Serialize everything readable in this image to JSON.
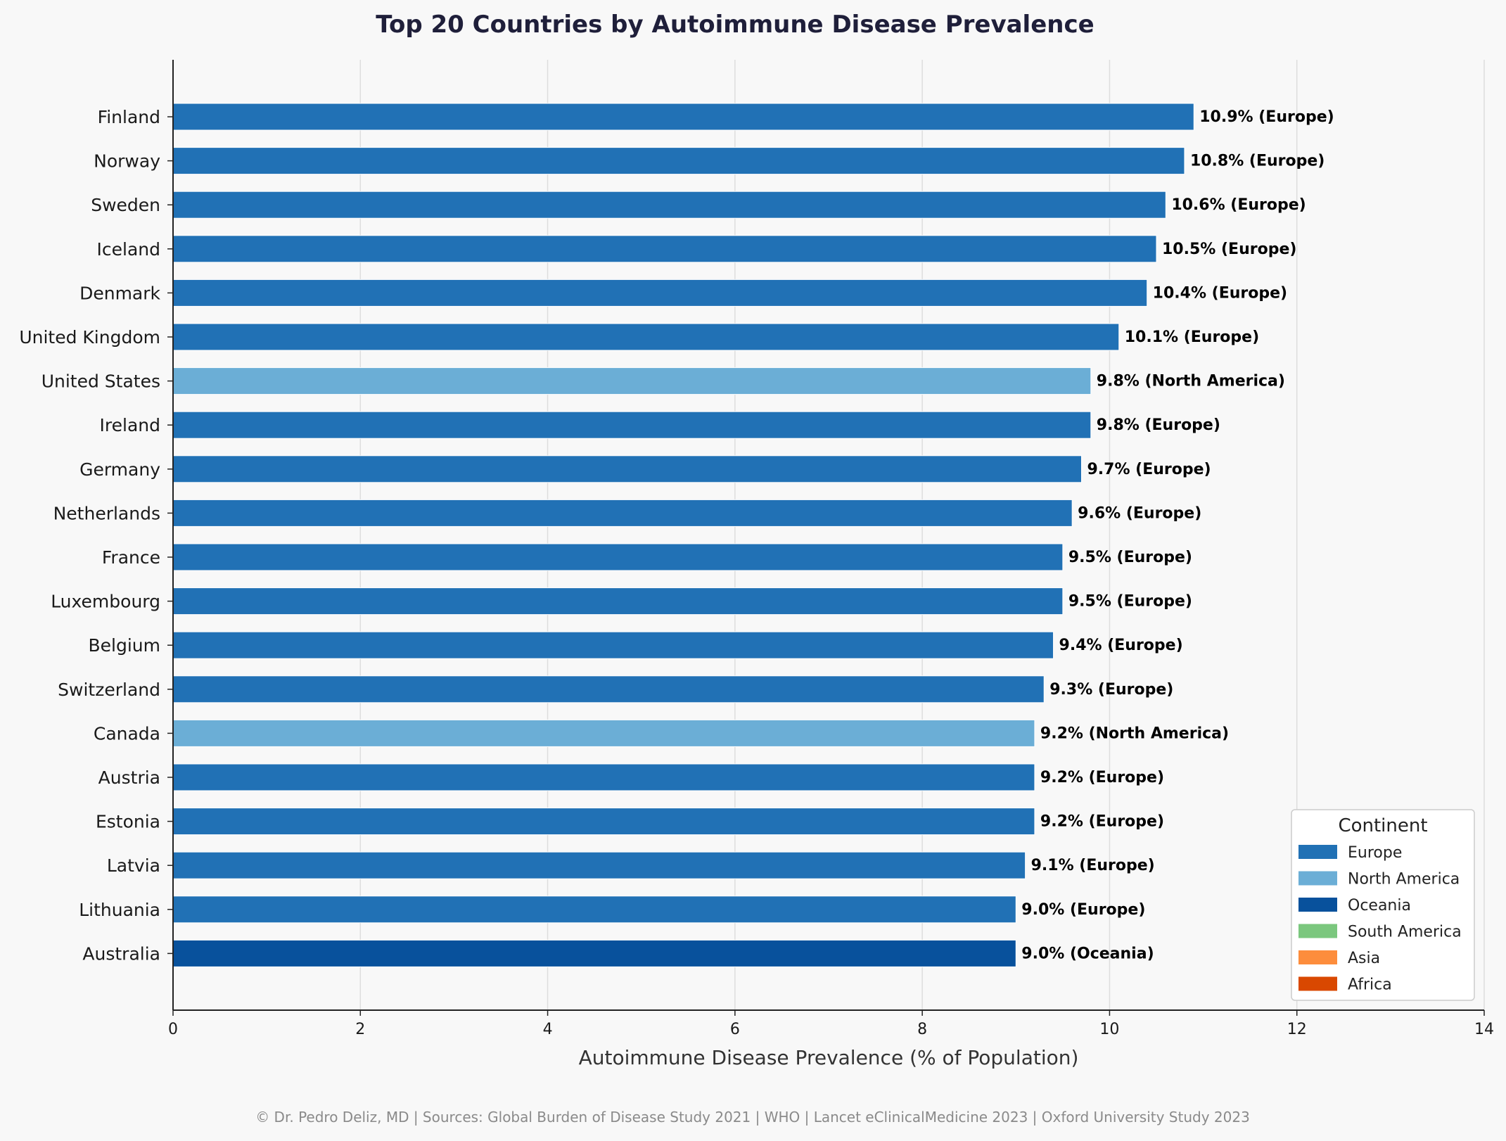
{
  "chart_data": {
    "type": "bar",
    "orientation": "horizontal",
    "title": "Top 20 Countries by Autoimmune Disease Prevalence",
    "xlabel": "Autoimmune Disease Prevalence (% of Population)",
    "ylabel": "",
    "xlim": [
      0,
      14
    ],
    "xticks": [
      0,
      2,
      4,
      6,
      8,
      10,
      12,
      14
    ],
    "grid": "vertical",
    "value_suffix": "%",
    "categories": [
      "Finland",
      "Norway",
      "Sweden",
      "Iceland",
      "Denmark",
      "United Kingdom",
      "United States",
      "Ireland",
      "Germany",
      "Netherlands",
      "France",
      "Luxembourg",
      "Belgium",
      "Switzerland",
      "Canada",
      "Austria",
      "Estonia",
      "Latvia",
      "Lithuania",
      "Australia"
    ],
    "values": [
      10.9,
      10.8,
      10.6,
      10.5,
      10.4,
      10.1,
      9.8,
      9.8,
      9.7,
      9.6,
      9.5,
      9.5,
      9.4,
      9.3,
      9.2,
      9.2,
      9.2,
      9.1,
      9.0,
      9.0
    ],
    "groups": [
      "Europe",
      "Europe",
      "Europe",
      "Europe",
      "Europe",
      "Europe",
      "North America",
      "Europe",
      "Europe",
      "Europe",
      "Europe",
      "Europe",
      "Europe",
      "Europe",
      "North America",
      "Europe",
      "Europe",
      "Europe",
      "Europe",
      "Oceania"
    ],
    "legend": {
      "title": "Continent",
      "placement": "bottom-right",
      "entries": [
        {
          "name": "Europe",
          "color": "#2171b5"
        },
        {
          "name": "North America",
          "color": "#6baed6"
        },
        {
          "name": "Oceania",
          "color": "#08519c"
        },
        {
          "name": "South America",
          "color": "#7bc77e"
        },
        {
          "name": "Asia",
          "color": "#fd8d3c"
        },
        {
          "name": "Africa",
          "color": "#d94801"
        }
      ]
    },
    "footer": "© Dr. Pedro Deliz, MD | Sources: Global Burden of Disease Study 2021 | WHO | Lancet eClinicalMedicine 2023 | Oxford University Study 2023"
  }
}
